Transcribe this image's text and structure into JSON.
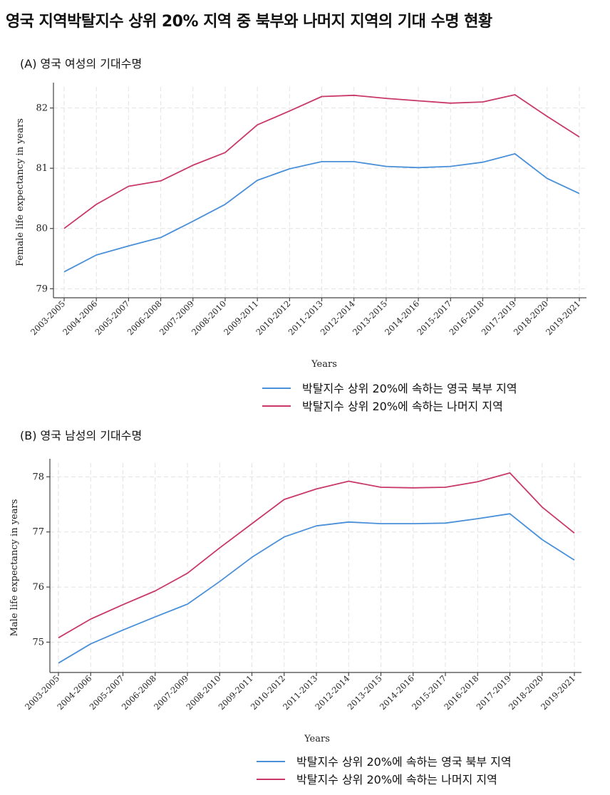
{
  "title": "영국 지역박탈지수 상위 20% 지역 중 북부와 나머지 지역의 기대 수명 현황",
  "colors": {
    "north": "#4a90d9",
    "rest": "#c9386a",
    "grid": "#e2e2e2",
    "axis": "#444444"
  },
  "chart_data": [
    {
      "type": "line",
      "title": "(A) 영국 여성의 기대수명",
      "xlabel": "Years",
      "ylabel": "Female life expectancy in years",
      "ylim": [
        78.85,
        82.35
      ],
      "yticks": [
        79,
        80,
        81,
        82
      ],
      "categories": [
        "2003-2005",
        "2004-2006",
        "2005-2007",
        "2006-2008",
        "2007-2009",
        "2008-2010",
        "2009-2011",
        "2010-2012",
        "2011-2013",
        "2012-2014",
        "2013-2015",
        "2014-2016",
        "2015-2017",
        "2016-2018",
        "2017-2019",
        "2018-2020",
        "2019-2021"
      ],
      "series": [
        {
          "name": "박탈지수 상위 20%에 속하는 영국 북부 지역",
          "color_key": "north",
          "values": [
            79.28,
            79.56,
            79.71,
            79.85,
            80.12,
            80.4,
            80.8,
            80.99,
            81.11,
            81.11,
            81.03,
            81.01,
            81.03,
            81.1,
            81.24,
            80.83,
            80.58
          ]
        },
        {
          "name": "박탈지수 상위 20%에 속하는 나머지 지역",
          "color_key": "rest",
          "values": [
            80.0,
            80.4,
            80.7,
            80.79,
            81.05,
            81.26,
            81.72,
            81.95,
            82.19,
            82.21,
            82.16,
            82.12,
            82.08,
            82.1,
            82.22,
            81.86,
            81.52
          ]
        }
      ],
      "grid": true,
      "legend": "bottom-right"
    },
    {
      "type": "line",
      "title": "(B) 영국 남성의 기대수명",
      "xlabel": "Years",
      "ylabel": "Male life expectancy in years",
      "ylim": [
        74.45,
        78.25
      ],
      "yticks": [
        75,
        76,
        77,
        78
      ],
      "categories": [
        "2003-2005",
        "2004-2006",
        "2005-2007",
        "2006-2008",
        "2007-2009",
        "2008-2010",
        "2009-2011",
        "2010-2012",
        "2011-2013",
        "2012-2014",
        "2013-2015",
        "2014-2016",
        "2015-2017",
        "2016-2018",
        "2017-2019",
        "2018-2020",
        "2019-2021"
      ],
      "series": [
        {
          "name": "박탈지수 상위 20%에 속하는 영국 북부 지역",
          "color_key": "north",
          "values": [
            74.62,
            74.97,
            75.22,
            75.46,
            75.69,
            76.1,
            76.54,
            76.91,
            77.11,
            77.18,
            77.15,
            77.15,
            77.16,
            77.24,
            77.33,
            76.86,
            76.49
          ]
        },
        {
          "name": "박탈지수 상위 20%에 속하는 나머지 지역",
          "color_key": "rest",
          "values": [
            75.08,
            75.42,
            75.68,
            75.93,
            76.25,
            76.71,
            77.15,
            77.59,
            77.78,
            77.92,
            77.81,
            77.8,
            77.81,
            77.91,
            78.07,
            77.45,
            76.98
          ]
        }
      ],
      "grid": true,
      "legend": "bottom-right"
    }
  ]
}
